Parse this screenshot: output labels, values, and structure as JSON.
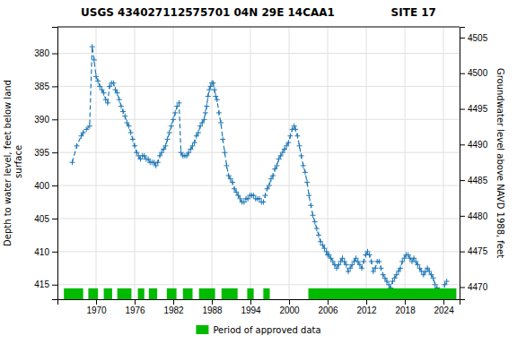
{
  "chart_data": {
    "type": "line",
    "title": "USGS 434027112575701 04N 29E 14CAA1               SITE 17",
    "ylabel": "Depth to water level, feet below land\n surface",
    "y2label": "Groundwater level above NAVD 1988, feet",
    "xlim": [
      1964.0,
      2026.5
    ],
    "xticks": [
      1970,
      1976,
      1982,
      1988,
      1994,
      2000,
      2006,
      2012,
      2018,
      2024
    ],
    "ylim": [
      417.2,
      376.0
    ],
    "yticks": [
      380,
      385,
      390,
      395,
      400,
      405,
      410,
      415
    ],
    "y2lim": [
      4468.3,
      4506.5
    ],
    "y2ticks": [
      4505,
      4500,
      4495,
      4490,
      4485,
      4480,
      4475,
      4470
    ],
    "grid": true,
    "legend": "bottom",
    "x": [
      1966.3,
      1967.0,
      1967.7,
      1968.0,
      1968.5,
      1969.0,
      1969.4,
      1969.7,
      1970.0,
      1970.3,
      1970.6,
      1970.9,
      1971.2,
      1971.5,
      1971.8,
      1972.1,
      1972.4,
      1972.7,
      1973.0,
      1973.3,
      1973.6,
      1973.9,
      1974.2,
      1974.5,
      1974.8,
      1975.1,
      1975.4,
      1975.7,
      1976.0,
      1976.3,
      1976.6,
      1976.9,
      1977.2,
      1977.5,
      1977.8,
      1978.1,
      1978.4,
      1978.7,
      1979.0,
      1979.3,
      1979.6,
      1979.9,
      1980.2,
      1980.5,
      1980.8,
      1981.1,
      1981.4,
      1981.7,
      1982.0,
      1982.3,
      1982.6,
      1982.9,
      1983.2,
      1983.5,
      1983.8,
      1984.1,
      1984.4,
      1984.7,
      1985.0,
      1985.3,
      1985.6,
      1985.9,
      1986.2,
      1986.5,
      1986.8,
      1987.0,
      1987.2,
      1987.4,
      1987.6,
      1987.8,
      1988.0,
      1988.2,
      1988.4,
      1988.6,
      1988.8,
      1989.1,
      1989.4,
      1989.7,
      1990.0,
      1990.3,
      1990.6,
      1990.9,
      1991.2,
      1991.5,
      1991.8,
      1992.1,
      1992.4,
      1992.7,
      1993.0,
      1993.3,
      1993.6,
      1993.9,
      1994.2,
      1994.5,
      1994.8,
      1995.1,
      1995.4,
      1995.7,
      1996.0,
      1996.3,
      1996.6,
      1996.9,
      1997.2,
      1997.5,
      1997.8,
      1998.1,
      1998.4,
      1998.7,
      1999.0,
      1999.3,
      1999.6,
      1999.9,
      2000.2,
      2000.5,
      2000.8,
      2001.0,
      2001.3,
      2001.6,
      2001.9,
      2002.2,
      2002.5,
      2002.8,
      2003.1,
      2003.4,
      2003.7,
      2004.0,
      2004.3,
      2004.6,
      2004.9,
      2005.2,
      2005.5,
      2005.8,
      2006.0,
      2006.2,
      2006.5,
      2006.8,
      2007.1,
      2007.4,
      2007.7,
      2008.0,
      2008.3,
      2008.6,
      2008.9,
      2009.2,
      2009.5,
      2009.8,
      2010.1,
      2010.4,
      2010.7,
      2011.0,
      2011.3,
      2011.6,
      2011.9,
      2012.2,
      2012.5,
      2012.8,
      2013.1,
      2013.4,
      2013.7,
      2014.0,
      2014.3,
      2014.6,
      2014.9,
      2015.2,
      2015.5,
      2015.8,
      2016.1,
      2016.4,
      2016.7,
      2017.0,
      2017.3,
      2017.6,
      2017.9,
      2018.2,
      2018.5,
      2018.8,
      2019.1,
      2019.4,
      2019.7,
      2020.0,
      2020.3,
      2020.6,
      2020.9,
      2021.2,
      2021.5,
      2021.8,
      2022.1,
      2022.4,
      2022.7,
      2023.0,
      2023.3,
      2023.6,
      2023.9,
      2024.2,
      2024.5
    ],
    "series": [
      {
        "type": "line",
        "marker": "plus",
        "line_style": "dashed",
        "values": [
          396.5,
          394.0,
          392.5,
          392.0,
          391.5,
          391.0,
          379.0,
          381.0,
          383.5,
          384.2,
          385.0,
          385.5,
          386.0,
          387.0,
          387.5,
          385.0,
          384.5,
          384.5,
          385.5,
          386.0,
          387.0,
          388.0,
          388.8,
          389.5,
          390.5,
          391.0,
          392.0,
          393.0,
          394.0,
          395.0,
          395.5,
          396.0,
          395.5,
          395.5,
          396.0,
          396.0,
          396.5,
          396.5,
          396.5,
          397.0,
          396.5,
          395.5,
          395.0,
          394.5,
          394.0,
          393.0,
          392.0,
          391.0,
          390.0,
          389.0,
          388.0,
          387.5,
          395.0,
          395.5,
          395.5,
          395.5,
          395.0,
          394.5,
          394.0,
          393.5,
          392.5,
          392.0,
          391.0,
          390.5,
          390.0,
          389.0,
          388.0,
          386.5,
          385.5,
          385.0,
          384.5,
          384.5,
          385.5,
          386.5,
          387.0,
          389.0,
          390.5,
          393.0,
          395.0,
          397.0,
          398.5,
          399.0,
          399.5,
          400.5,
          401.0,
          401.5,
          402.0,
          402.5,
          402.5,
          402.0,
          402.0,
          401.5,
          401.5,
          401.5,
          402.0,
          402.0,
          402.0,
          402.5,
          402.5,
          401.5,
          400.5,
          400.0,
          399.0,
          398.5,
          397.5,
          397.0,
          396.0,
          395.5,
          395.0,
          394.5,
          394.0,
          393.5,
          392.5,
          391.5,
          391.0,
          391.5,
          392.5,
          394.0,
          395.5,
          397.0,
          398.0,
          399.5,
          401.5,
          403.0,
          404.5,
          405.5,
          406.5,
          407.5,
          408.5,
          409.0,
          409.5,
          410.0,
          410.5,
          410.5,
          411.0,
          411.5,
          412.0,
          412.5,
          412.0,
          411.5,
          411.0,
          411.5,
          412.0,
          413.0,
          412.5,
          412.0,
          411.5,
          411.0,
          411.5,
          412.0,
          412.5,
          411.5,
          410.5,
          410.0,
          410.5,
          411.5,
          413.0,
          412.5,
          411.5,
          411.5,
          412.5,
          413.5,
          414.0,
          414.5,
          415.0,
          415.5,
          414.5,
          414.0,
          413.5,
          413.0,
          412.5,
          411.5,
          411.0,
          410.5,
          410.5,
          411.0,
          411.5,
          411.0,
          411.5,
          412.0,
          412.5,
          413.0,
          413.5,
          413.0,
          412.5,
          413.0,
          413.5,
          414.0,
          415.0,
          415.5,
          415.8,
          416.0,
          416.1,
          415.0,
          414.5
        ]
      },
      {
        "type": "band",
        "name": "Period of approved data",
        "color": "#00bb00",
        "periods": [
          [
            1965.0,
            1968.0
          ],
          [
            1968.8,
            1970.3
          ],
          [
            1971.2,
            1972.5
          ],
          [
            1973.3,
            1975.5
          ],
          [
            1976.5,
            1977.5
          ],
          [
            1978.2,
            1979.5
          ],
          [
            1981.0,
            1982.5
          ],
          [
            1983.5,
            1985.0
          ],
          [
            1986.0,
            1988.5
          ],
          [
            1989.5,
            1992.0
          ],
          [
            1993.5,
            1994.5
          ],
          [
            1996.0,
            1997.0
          ],
          [
            2003.0,
            2026.0
          ]
        ]
      }
    ]
  }
}
